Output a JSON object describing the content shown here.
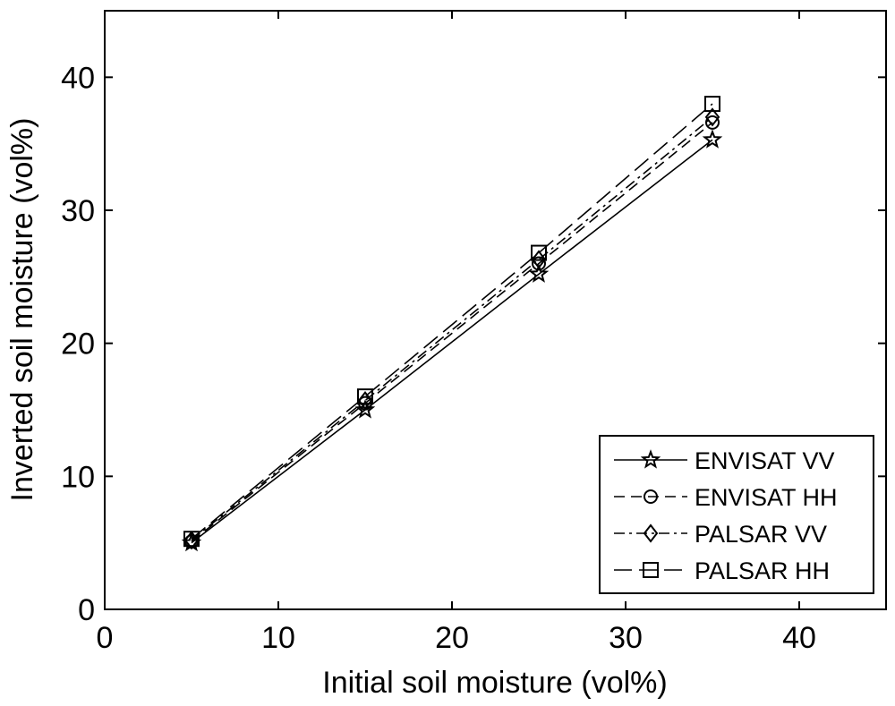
{
  "chart_data": {
    "type": "line",
    "xlabel": "Initial soil moisture (vol%)",
    "ylabel": "Inverted soil moisture (vol%)",
    "xlim": [
      0,
      45
    ],
    "ylim": [
      0,
      45
    ],
    "xticks": [
      0,
      10,
      20,
      30,
      40
    ],
    "yticks": [
      0,
      10,
      20,
      30,
      40
    ],
    "xtick_labels": [
      "0",
      "10",
      "20",
      "30",
      "40"
    ],
    "ytick_labels": [
      "0",
      "10",
      "20",
      "30",
      "40"
    ],
    "grid": false,
    "legend_position": "bottom-right",
    "x": [
      5,
      15,
      25,
      35
    ],
    "series": [
      {
        "name": "ENVISAT VV",
        "values": [
          5.0,
          15.0,
          25.2,
          35.3
        ],
        "marker": "star",
        "linestyle": "solid"
      },
      {
        "name": "ENVISAT HH",
        "values": [
          5.1,
          15.5,
          26.0,
          36.6
        ],
        "marker": "circle",
        "linestyle": "dashed"
      },
      {
        "name": "PALSAR VV",
        "values": [
          5.2,
          15.7,
          26.3,
          37.0
        ],
        "marker": "diamond",
        "linestyle": "dashdot"
      },
      {
        "name": "PALSAR HH",
        "values": [
          5.3,
          16.0,
          26.8,
          38.0
        ],
        "marker": "square",
        "linestyle": "longdash"
      }
    ]
  }
}
